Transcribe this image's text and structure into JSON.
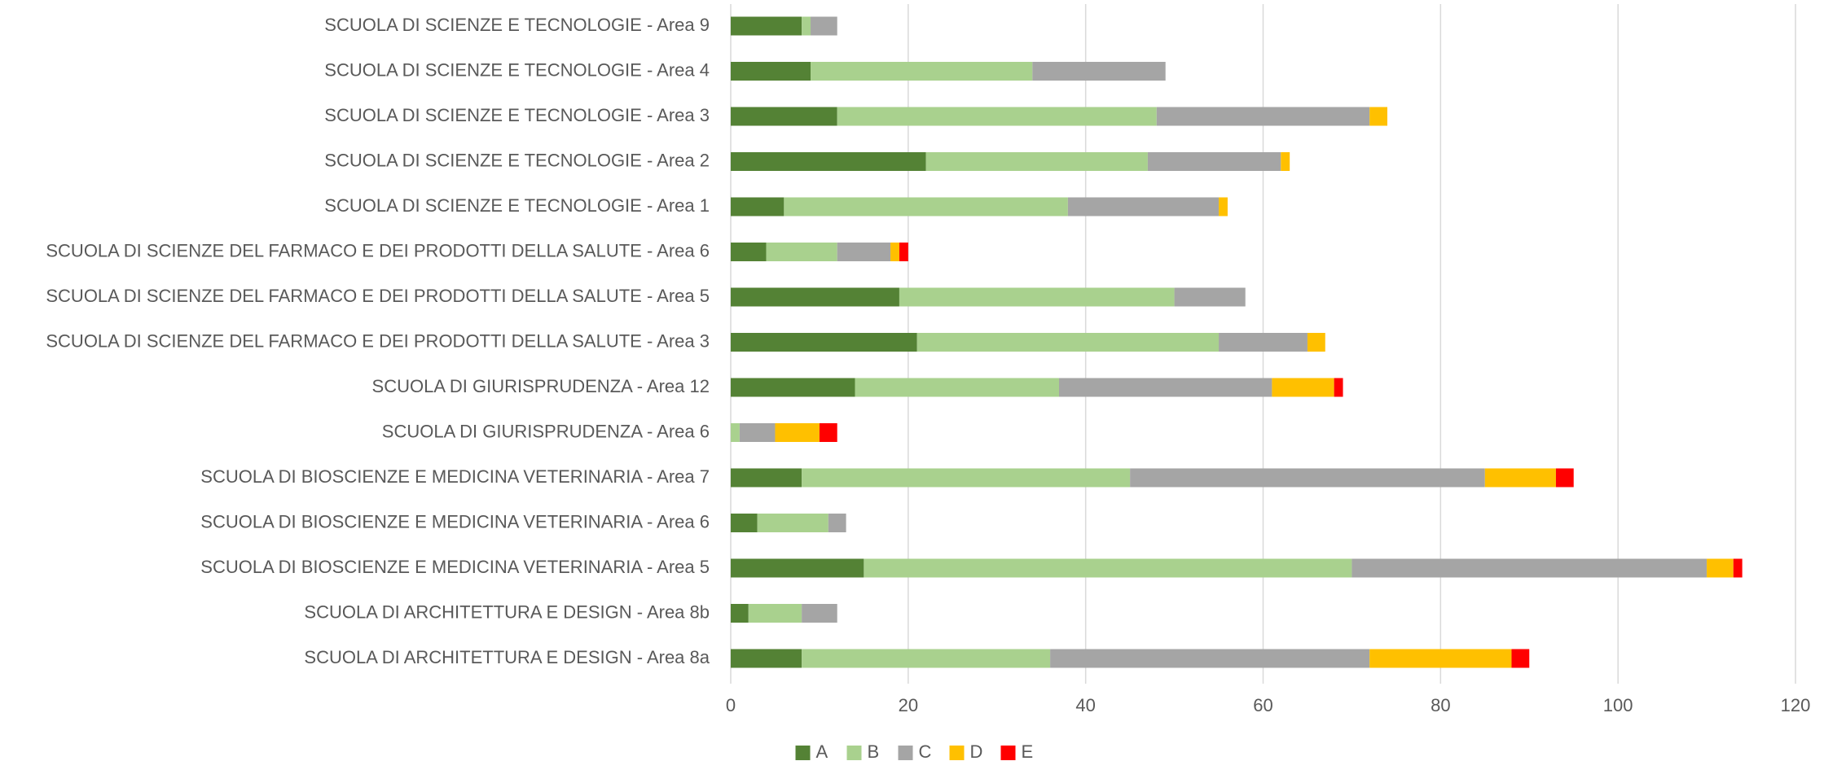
{
  "chart_data": {
    "type": "bar",
    "orientation": "horizontal",
    "stacked": true,
    "categories": [
      "SCUOLA DI ARCHITETTURA E DESIGN - Area 8a",
      "SCUOLA DI ARCHITETTURA E DESIGN - Area 8b",
      "SCUOLA DI BIOSCIENZE E MEDICINA VETERINARIA - Area 5",
      "SCUOLA DI BIOSCIENZE E MEDICINA VETERINARIA - Area 6",
      "SCUOLA DI BIOSCIENZE E MEDICINA VETERINARIA - Area 7",
      "SCUOLA DI GIURISPRUDENZA - Area 6",
      "SCUOLA DI GIURISPRUDENZA - Area 12",
      "SCUOLA DI SCIENZE DEL FARMACO E DEI PRODOTTI DELLA SALUTE - Area 3",
      "SCUOLA DI SCIENZE DEL FARMACO E DEI PRODOTTI DELLA SALUTE - Area 5",
      "SCUOLA DI SCIENZE DEL FARMACO E DEI PRODOTTI DELLA SALUTE - Area 6",
      "SCUOLA DI SCIENZE E TECNOLOGIE - Area 1",
      "SCUOLA DI SCIENZE E TECNOLOGIE - Area 2",
      "SCUOLA DI SCIENZE E TECNOLOGIE - Area 3",
      "SCUOLA DI SCIENZE E TECNOLOGIE - Area 4",
      "SCUOLA DI SCIENZE E TECNOLOGIE - Area 9"
    ],
    "series": [
      {
        "name": "A",
        "color": "#548235",
        "values": [
          8,
          2,
          15,
          3,
          8,
          0,
          14,
          21,
          19,
          4,
          6,
          22,
          12,
          9,
          8
        ]
      },
      {
        "name": "B",
        "color": "#a9d18e",
        "values": [
          28,
          6,
          55,
          8,
          37,
          1,
          23,
          34,
          31,
          8,
          32,
          25,
          36,
          25,
          1
        ]
      },
      {
        "name": "C",
        "color": "#a5a5a5",
        "values": [
          36,
          4,
          40,
          2,
          40,
          4,
          24,
          10,
          8,
          6,
          17,
          15,
          24,
          15,
          3
        ]
      },
      {
        "name": "D",
        "color": "#ffc000",
        "values": [
          16,
          0,
          3,
          0,
          8,
          5,
          7,
          2,
          0,
          1,
          1,
          1,
          2,
          0,
          0
        ]
      },
      {
        "name": "E",
        "color": "#ff0000",
        "values": [
          2,
          0,
          1,
          0,
          2,
          2,
          1,
          0,
          0,
          1,
          0,
          0,
          0,
          0,
          0
        ]
      }
    ],
    "xlim": [
      0,
      120
    ],
    "xticks": [
      0,
      20,
      40,
      60,
      80,
      100,
      120
    ],
    "grid": true,
    "legend": "bottom"
  }
}
